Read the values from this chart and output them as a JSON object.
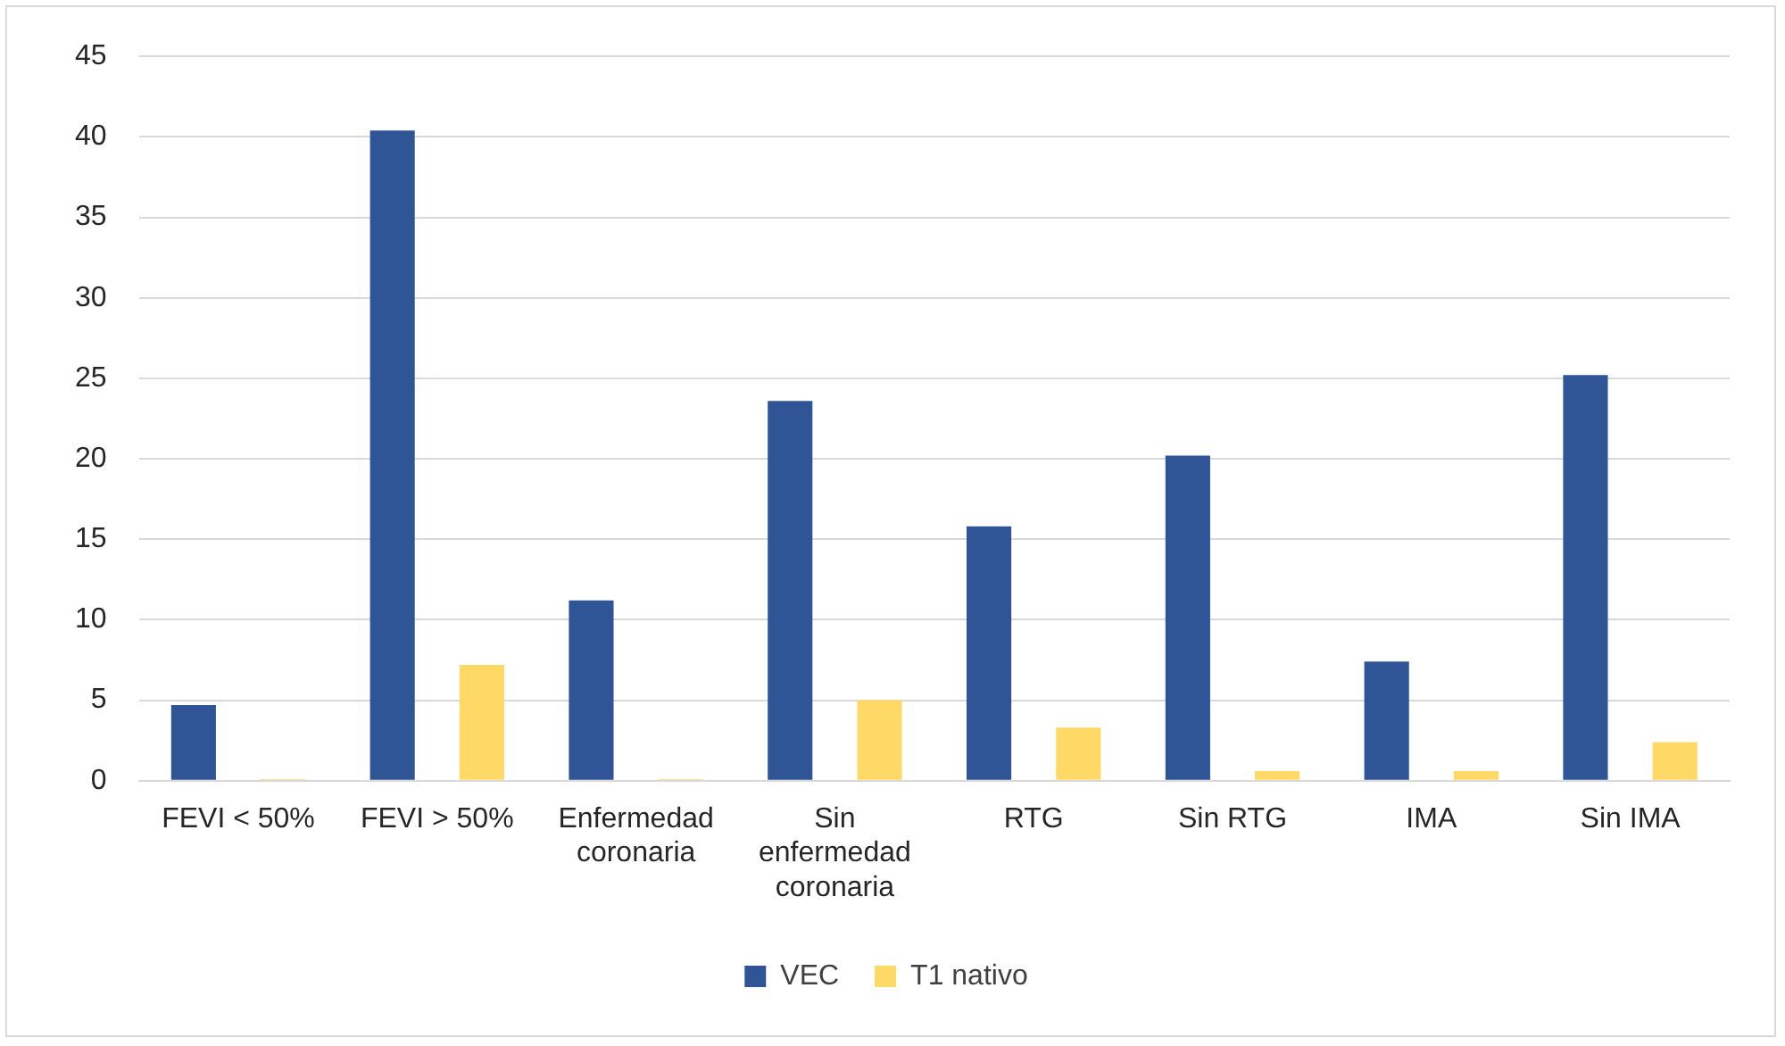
{
  "chart_data": {
    "type": "bar",
    "categories": [
      "FEVI < 50%",
      "FEVI > 50%",
      "Enfermedad coronaria",
      "Sin enfermedad coronaria",
      "RTG",
      "Sin RTG",
      "IMA",
      "Sin IMA"
    ],
    "series": [
      {
        "name": "VEC",
        "color": "#2f5597",
        "values": [
          4.7,
          40.4,
          11.2,
          23.6,
          15.8,
          20.2,
          7.4,
          25.2
        ]
      },
      {
        "name": "T1 nativo",
        "color": "#ffd966",
        "values": [
          0.1,
          7.2,
          0.1,
          5.0,
          3.3,
          0.6,
          0.6,
          2.4
        ]
      }
    ],
    "ylim": [
      0,
      45
    ],
    "yticks": [
      0,
      5,
      10,
      15,
      20,
      25,
      30,
      35,
      40,
      45
    ],
    "grid": "y",
    "legend": "bottom"
  }
}
